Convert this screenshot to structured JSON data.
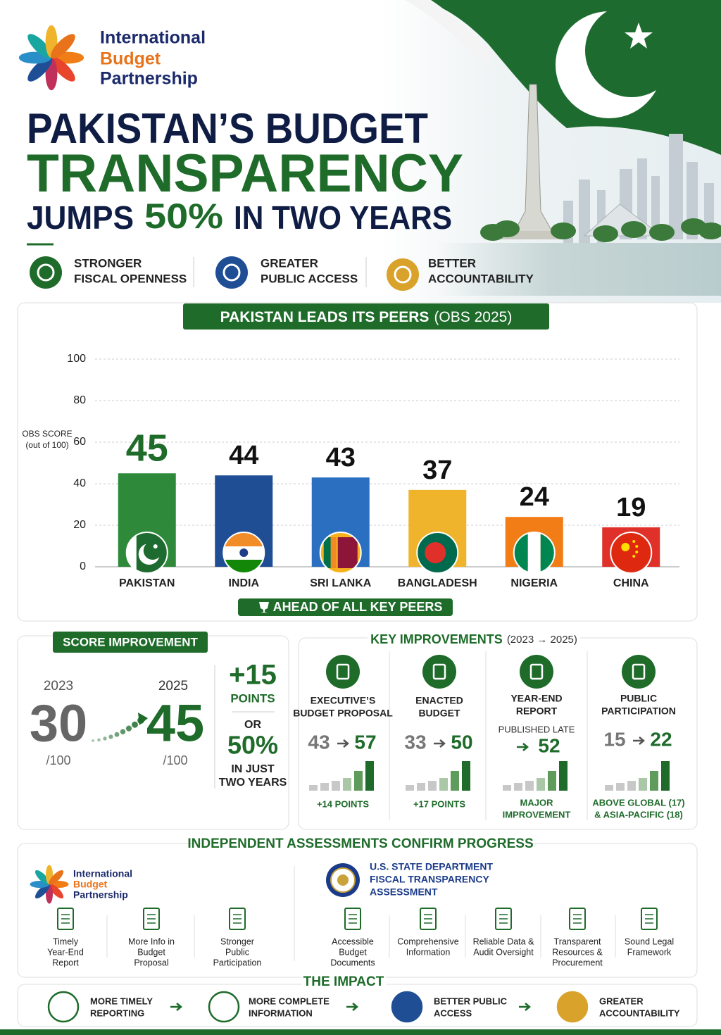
{
  "header": {
    "org_name": [
      "International",
      "Budget",
      "Partnership"
    ],
    "title": [
      "PAKISTAN’S BUDGET",
      "TRANSPARENCY"
    ],
    "subtitle": [
      "JUMPS",
      "50%",
      "IN TWO YEARS"
    ]
  },
  "highlights": [
    [
      "STRONGER",
      "FISCAL OPENNESS"
    ],
    [
      "GREATER",
      "PUBLIC ACCESS"
    ],
    [
      "BETTER",
      "ACCOUNTABILITY"
    ]
  ],
  "chart_data": {
    "type": "bar",
    "title": "PAKISTAN LEADS ITS PEERS",
    "title_note": "(OBS 2025)",
    "y_label": [
      "OBS SCORE",
      "(out of 100)"
    ],
    "categories": [
      "PAKISTAN",
      "INDIA",
      "SRI LANKA",
      "BANGLADESH",
      "NIGERIA",
      "CHINA"
    ],
    "values": [
      45,
      44,
      43,
      37,
      24,
      19
    ],
    "colors": [
      "#2e8a3a",
      "#1f4e95",
      "#2a6fc0",
      "#f0b42c",
      "#f27d16",
      "#e0302a"
    ],
    "ylim": [
      0,
      100
    ],
    "yticks": [
      0,
      20,
      40,
      60,
      80,
      100
    ],
    "grid": true,
    "footer": "AHEAD OF ALL KEY PEERS"
  },
  "score_improvement": {
    "title": "SCORE IMPROVEMENT",
    "from": {
      "year": "2023",
      "score": "30",
      "scale": "/100"
    },
    "to": {
      "year": "2025",
      "score": "45",
      "scale": "/100"
    },
    "gain": "+15",
    "gain_unit": "POINTS",
    "or": "OR",
    "percent": "50%",
    "percent_note": [
      "IN JUST",
      "TWO YEARS"
    ]
  },
  "key_improvements": {
    "title": "KEY IMPROVEMENTS",
    "title_note": "(2023 → 2025)",
    "items": [
      {
        "label": [
          "EXECUTIVE’S",
          "BUDGET PROPOSAL"
        ],
        "from": "43",
        "to": "57",
        "note": [
          "+14 POINTS"
        ]
      },
      {
        "label": [
          "ENACTED",
          "BUDGET"
        ],
        "from": "33",
        "to": "50",
        "note": [
          "+17 POINTS"
        ]
      },
      {
        "label": [
          "YEAR-END",
          "REPORT"
        ],
        "status": "PUBLISHED LATE",
        "to": "52",
        "note": [
          "MAJOR",
          "IMPROVEMENT"
        ]
      },
      {
        "label": [
          "PUBLIC",
          "PARTICIPATION"
        ],
        "from": "15",
        "to": "22",
        "note": [
          "ABOVE GLOBAL (17)",
          "& ASIA-PACIFIC (18)"
        ]
      }
    ]
  },
  "assessments": {
    "title": "INDEPENDENT ASSESSMENTS CONFIRM PROGRESS",
    "ibp": {
      "name": [
        "International",
        "Budget",
        "Partnership"
      ],
      "items": [
        [
          "Timely",
          "Year-End",
          "Report"
        ],
        [
          "More Info in",
          "Budget",
          "Proposal"
        ],
        [
          "Stronger",
          "Public",
          "Participation"
        ]
      ]
    },
    "state_department": {
      "name": [
        "U.S. STATE DEPARTMENT",
        "FISCAL TRANSPARENCY",
        "ASSESSMENT"
      ],
      "items": [
        [
          "Accessible",
          "Budget",
          "Documents"
        ],
        [
          "Comprehensive",
          "Information"
        ],
        [
          "Reliable Data &",
          "Audit Oversight"
        ],
        [
          "Transparent",
          "Resources &",
          "Procurement"
        ],
        [
          "Sound Legal",
          "Framework"
        ]
      ]
    }
  },
  "impact": {
    "title": "THE IMPACT",
    "items": [
      [
        "MORE TIMELY",
        "REPORTING"
      ],
      [
        "MORE COMPLETE",
        "INFORMATION"
      ],
      [
        "BETTER PUBLIC",
        "ACCESS"
      ],
      [
        "GREATER",
        "ACCOUNTABILITY"
      ]
    ]
  }
}
